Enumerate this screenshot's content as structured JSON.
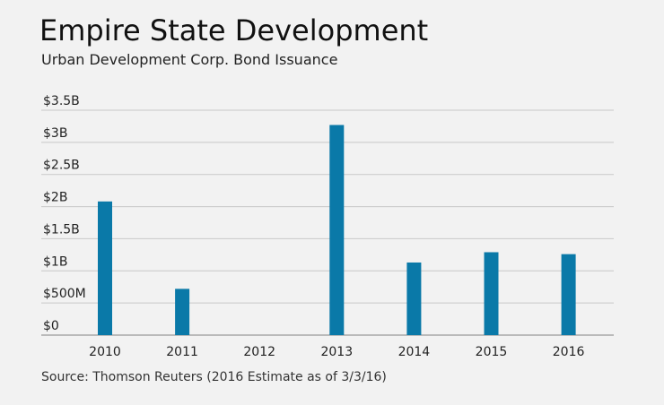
{
  "title": "Empire State Development",
  "subtitle": "Urban Development Corp. Bond Issuance",
  "source": "Source: Thomson Reuters (2016 Estimate as of 3/3/16)",
  "colors": {
    "bar": "#0a79a8",
    "grid": "#c8c8c8",
    "axis": "#999999"
  },
  "chart_data": {
    "type": "bar",
    "title": "Empire State Development",
    "subtitle": "Urban Development Corp. Bond Issuance",
    "xlabel": "",
    "ylabel": "",
    "categories": [
      "2010",
      "2011",
      "2012",
      "2013",
      "2014",
      "2015",
      "2016"
    ],
    "values": [
      2.08,
      0.72,
      0,
      3.27,
      1.13,
      1.29,
      1.26
    ],
    "unit": "billions of dollars",
    "ylim": [
      0,
      3.5
    ],
    "yticks": [
      {
        "value": 0,
        "label": "$0"
      },
      {
        "value": 0.5,
        "label": "$500M"
      },
      {
        "value": 1,
        "label": "$1B"
      },
      {
        "value": 1.5,
        "label": "$1.5B"
      },
      {
        "value": 2,
        "label": "$2B"
      },
      {
        "value": 2.5,
        "label": "$2.5B"
      },
      {
        "value": 3,
        "label": "$3B"
      },
      {
        "value": 3.5,
        "label": "$3.5B"
      }
    ],
    "grid": true,
    "legend": "none"
  }
}
